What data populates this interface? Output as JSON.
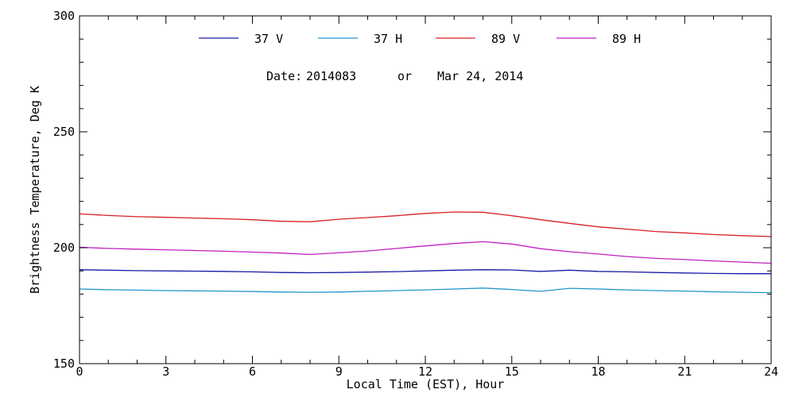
{
  "chart_data": {
    "type": "line",
    "xlabel": "Local Time (EST), Hour",
    "ylabel": "Brightness Temperature, Deg K",
    "xlim": [
      0,
      24
    ],
    "ylim": [
      150,
      300
    ],
    "x_ticks": [
      0,
      3,
      6,
      9,
      12,
      15,
      18,
      21,
      24
    ],
    "y_ticks": [
      150,
      200,
      250,
      300
    ],
    "x_minor_step": 1,
    "y_minor_step": 10,
    "grid": false,
    "legend_position": "top",
    "annotation": {
      "date_label": "Date:",
      "date_code": "2014083",
      "connector": "or",
      "date_text": "Mar 24, 2014"
    },
    "series": [
      {
        "name": "37 V",
        "color": "#1a1aa8",
        "x": [
          0,
          1,
          2,
          3,
          4,
          5,
          6,
          7,
          8,
          9,
          10,
          11,
          12,
          13,
          14,
          15,
          16,
          17,
          18,
          19,
          20,
          21,
          22,
          23,
          24
        ],
        "y": [
          190.5,
          190.3,
          190.1,
          190.0,
          189.9,
          189.8,
          189.6,
          189.3,
          189.2,
          189.3,
          189.5,
          189.7,
          190.0,
          190.3,
          190.5,
          190.4,
          189.8,
          190.3,
          189.8,
          189.6,
          189.3,
          189.1,
          188.9,
          188.8,
          188.8
        ]
      },
      {
        "name": "37 H",
        "color": "#2196c9",
        "x": [
          0,
          1,
          2,
          3,
          4,
          5,
          6,
          7,
          8,
          9,
          10,
          11,
          12,
          13,
          14,
          15,
          16,
          17,
          18,
          19,
          20,
          21,
          22,
          23,
          24
        ],
        "y": [
          182.2,
          181.9,
          181.7,
          181.5,
          181.4,
          181.3,
          181.1,
          180.9,
          180.8,
          180.9,
          181.2,
          181.5,
          181.8,
          182.2,
          182.6,
          182.0,
          181.2,
          182.5,
          182.2,
          181.8,
          181.5,
          181.3,
          181.0,
          180.8,
          180.6
        ]
      },
      {
        "name": "89 V",
        "color": "#d92020",
        "x": [
          0,
          1,
          2,
          3,
          4,
          5,
          6,
          7,
          8,
          9,
          10,
          11,
          12,
          13,
          14,
          15,
          16,
          17,
          18,
          19,
          20,
          21,
          22,
          23,
          24
        ],
        "y": [
          214.6,
          213.9,
          213.4,
          213.1,
          212.8,
          212.5,
          212.1,
          211.4,
          211.2,
          212.3,
          213.0,
          213.8,
          214.8,
          215.4,
          215.3,
          213.8,
          212.1,
          210.5,
          209.0,
          208.0,
          207.0,
          206.4,
          205.7,
          205.2,
          204.8
        ]
      },
      {
        "name": "89 H",
        "color": "#c21fc2",
        "x": [
          0,
          1,
          2,
          3,
          4,
          5,
          6,
          7,
          8,
          9,
          10,
          11,
          12,
          13,
          14,
          15,
          16,
          17,
          18,
          19,
          20,
          21,
          22,
          23,
          24
        ],
        "y": [
          200.2,
          199.7,
          199.4,
          199.1,
          198.8,
          198.5,
          198.1,
          197.7,
          197.1,
          197.8,
          198.6,
          199.7,
          200.8,
          201.8,
          202.6,
          201.6,
          199.6,
          198.3,
          197.3,
          196.2,
          195.4,
          194.9,
          194.3,
          193.8,
          193.3
        ]
      }
    ]
  }
}
